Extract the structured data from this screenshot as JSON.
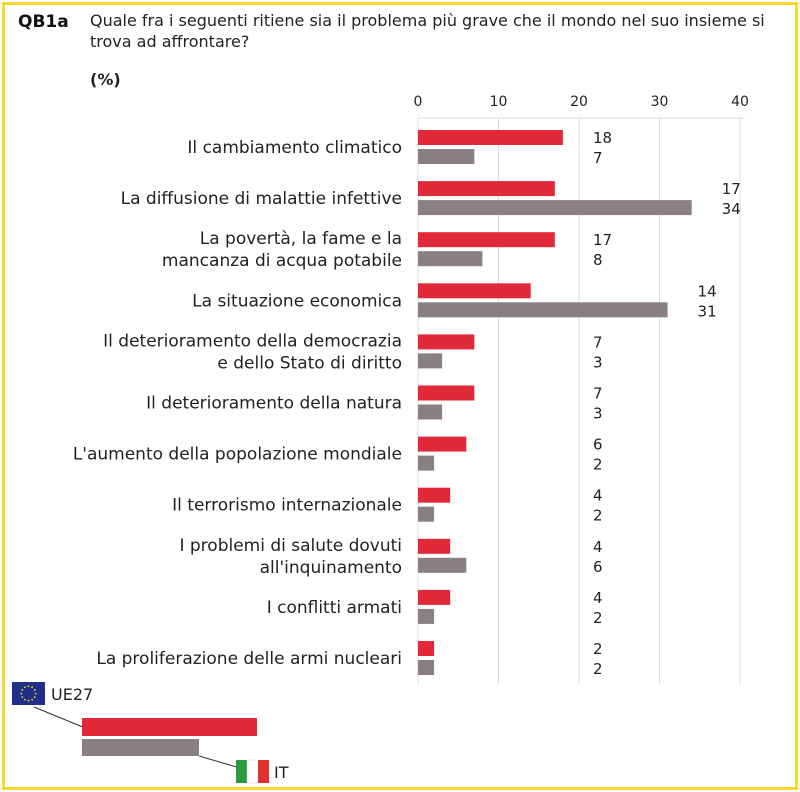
{
  "header": {
    "code": "QB1a",
    "question": "Quale fra i seguenti ritiene sia il problema più grave che il mondo nel suo insieme si trova ad affrontare?",
    "unit": "(%)"
  },
  "colors": {
    "eu": "#e02a3a",
    "it": "#8a7f82",
    "grid": "#dcdcdc",
    "border": "#f6d62c"
  },
  "chart_data": {
    "type": "bar",
    "orientation": "horizontal",
    "xlim": [
      0,
      40
    ],
    "ticks": [
      0,
      10,
      20,
      30,
      40
    ],
    "categories": [
      [
        "Il cambiamento climatico"
      ],
      [
        "La diffusione di malattie infettive"
      ],
      [
        "La povertà, la fame e la",
        "mancanza di acqua potabile"
      ],
      [
        "La situazione economica"
      ],
      [
        "Il deterioramento della democrazia",
        "e dello Stato di diritto"
      ],
      [
        "Il deterioramento della natura"
      ],
      [
        "L'aumento della popolazione mondiale"
      ],
      [
        "Il terrorismo internazionale"
      ],
      [
        "I problemi di salute dovuti",
        "all'inquinamento"
      ],
      [
        "I conflitti armati"
      ],
      [
        "La proliferazione delle armi nucleari"
      ]
    ],
    "series": [
      {
        "name": "UE27",
        "values": [
          18,
          17,
          17,
          14,
          7,
          7,
          6,
          4,
          4,
          4,
          2
        ]
      },
      {
        "name": "IT",
        "values": [
          7,
          34,
          8,
          31,
          3,
          3,
          2,
          2,
          6,
          2,
          2
        ]
      }
    ],
    "grid": true,
    "legend_position": "bottom-left"
  }
}
